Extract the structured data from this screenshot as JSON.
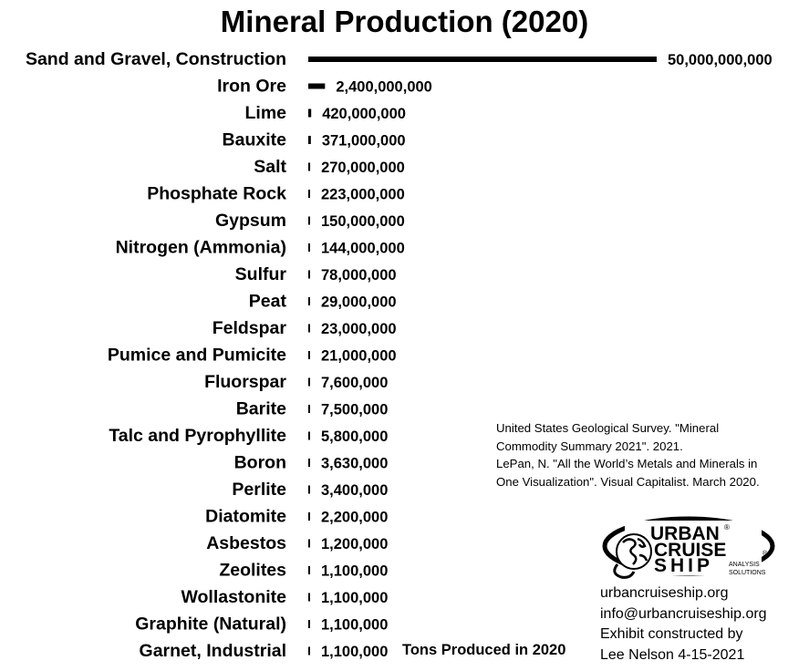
{
  "chart_data": {
    "type": "bar",
    "orientation": "horizontal",
    "title": "Mineral Production (2020)",
    "xlabel": "Tons Produced in 2020",
    "ylabel": "",
    "categories": [
      "Sand and Gravel, Construction",
      "Iron Ore",
      "Lime",
      "Bauxite",
      "Salt",
      "Phosphate Rock",
      "Gypsum",
      "Nitrogen (Ammonia)",
      "Sulfur",
      "Peat",
      "Feldspar",
      "Pumice and Pumicite",
      "Fluorspar",
      "Barite",
      "Talc and Pyrophyllite",
      "Boron",
      "Perlite",
      "Diatomite",
      "Asbestos",
      "Zeolites",
      "Wollastonite",
      "Graphite (Natural)",
      "Garnet, Industrial"
    ],
    "values": [
      50000000000,
      2400000000,
      420000000,
      371000000,
      270000000,
      223000000,
      150000000,
      144000000,
      78000000,
      29000000,
      23000000,
      21000000,
      7600000,
      7500000,
      5800000,
      3630000,
      3400000,
      2200000,
      1200000,
      1100000,
      1100000,
      1100000,
      1100000
    ],
    "value_labels": [
      "50,000,000,000",
      "2,400,000,000",
      "420,000,000",
      "371,000,000",
      "270,000,000",
      "223,000,000",
      "150,000,000",
      "144,000,000",
      "78,000,000",
      "29,000,000",
      "23,000,000",
      "21,000,000",
      "7,600,000",
      "7,500,000",
      "5,800,000",
      "3,630,000",
      "3,400,000",
      "2,200,000",
      "1,200,000",
      "1,100,000",
      "1,100,000",
      "1,100,000",
      "1,100,000"
    ],
    "xlim": [
      0,
      50000000000
    ],
    "grid": false,
    "bar_color": "#000000"
  },
  "sources": {
    "lines": [
      "United States Geological Survey. \"Mineral",
      "Commodity Summary 2021\". 2021.",
      "LePan, N. \"All the World’s Metals and Minerals in",
      "One Visualization\". Visual Capitalist. March 2020."
    ]
  },
  "logo": {
    "word1": "URBAN",
    "word2": "CRUISE",
    "word3": "SHIP",
    "tag1": "ANALYSIS",
    "tag2": "SOLUTIONS",
    "reg": "®"
  },
  "credits": {
    "website": "urbancruiseship.org",
    "email": "info@urbancruiseship.org",
    "line1": "Exhibit constructed by",
    "line2": "Lee Nelson 4-15-2021"
  }
}
